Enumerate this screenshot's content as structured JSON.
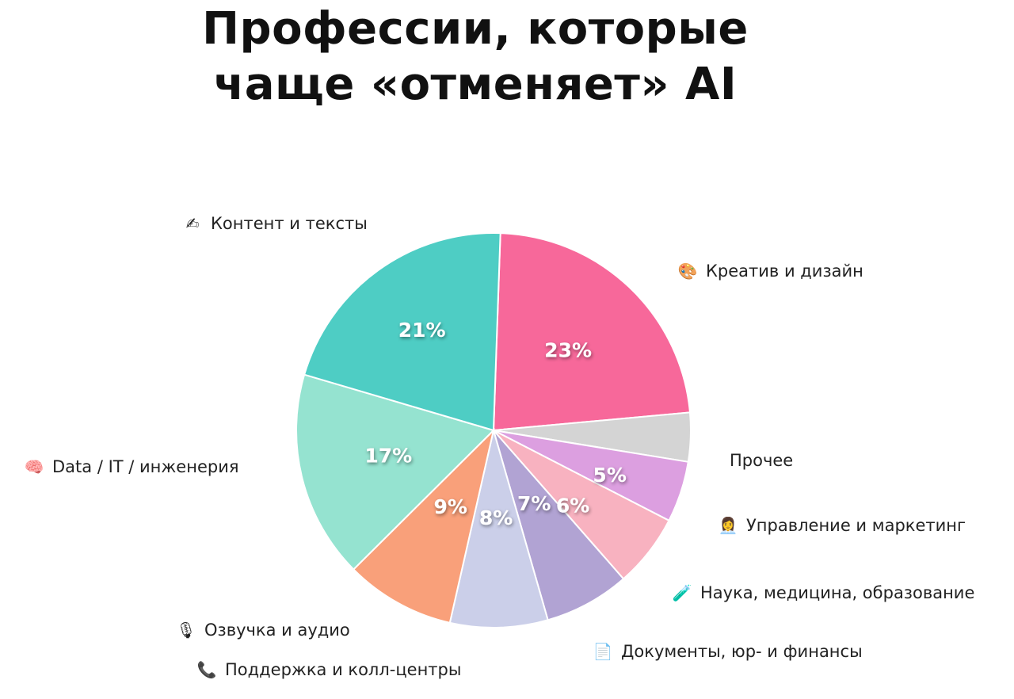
{
  "title_line1": "Профессии, которые",
  "title_line2": "чаще «отменяет» AI",
  "chart_data": {
    "type": "pie",
    "slices": [
      {
        "label": "Креатив и дизайн",
        "value": 23,
        "value_label": "23%",
        "color": "#f7689a",
        "icon": "palette-icon",
        "glyph": "🎨"
      },
      {
        "label": "Прочее",
        "value": 4,
        "value_label": "",
        "color": "#d4d4d4",
        "icon": "",
        "glyph": ""
      },
      {
        "label": "Управление и маркетинг",
        "value": 5,
        "value_label": "5%",
        "color": "#dc9fe0",
        "icon": "manager-icon",
        "glyph": "👩‍💼"
      },
      {
        "label": "Наука, медицина, образование",
        "value": 6,
        "value_label": "6%",
        "color": "#f8b2c0",
        "icon": "test-tube-icon",
        "glyph": "🧪"
      },
      {
        "label": "Документы, юр- и финансы",
        "value": 7,
        "value_label": "7%",
        "color": "#b1a3d3",
        "icon": "document-icon",
        "glyph": "📄"
      },
      {
        "label": "Поддержка и колл-центры",
        "value": 8,
        "value_label": "8%",
        "color": "#cbcfe9",
        "icon": "phone-icon",
        "glyph": "📞"
      },
      {
        "label": "Озвучка и аудио",
        "value": 9,
        "value_label": "9%",
        "color": "#f9a07a",
        "icon": "microphone-icon",
        "glyph": "🎙"
      },
      {
        "label": "Data / IT / инженерия",
        "value": 17,
        "value_label": "17%",
        "color": "#95e3d0",
        "icon": "brain-icon",
        "glyph": "🧠"
      },
      {
        "label": "Контент и тексты",
        "value": 21,
        "value_label": "21%",
        "color": "#4ecdc4",
        "icon": "writing-hand-icon",
        "glyph": "✍"
      }
    ]
  }
}
